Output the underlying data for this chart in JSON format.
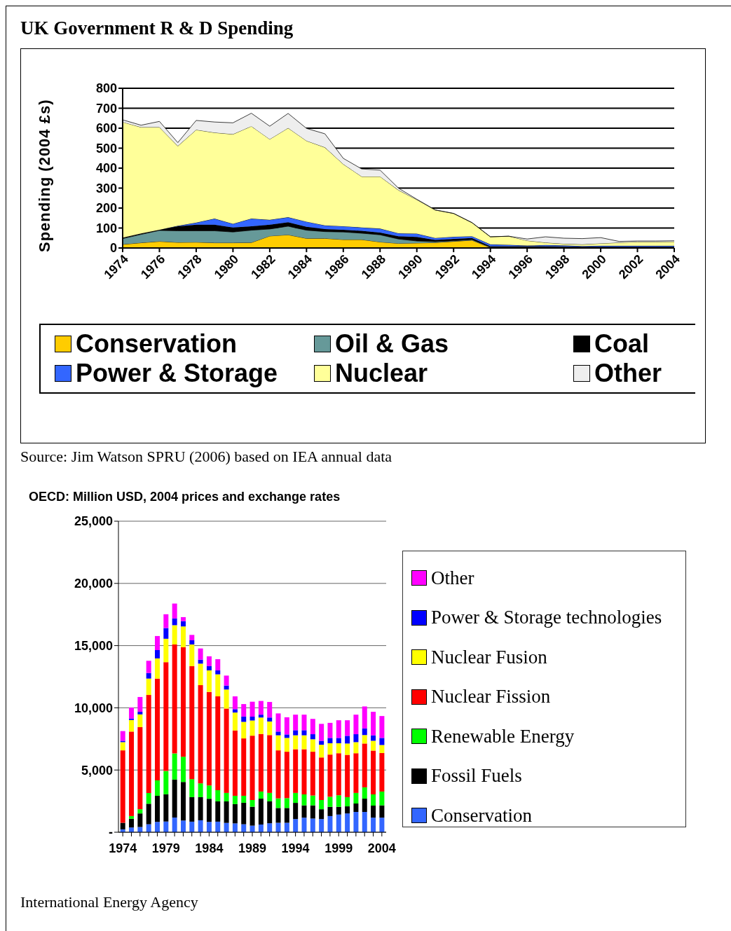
{
  "chart_data": [
    {
      "type": "area",
      "title": "UK Government R & D Spending",
      "ylabel": "Spending (2004 £s)",
      "stacked": true,
      "grid": "y",
      "legend": "bottom",
      "x": [
        1974,
        1975,
        1976,
        1977,
        1978,
        1979,
        1980,
        1981,
        1982,
        1983,
        1984,
        1985,
        1986,
        1987,
        1988,
        1989,
        1990,
        1991,
        1992,
        1993,
        1994,
        1995,
        1996,
        1997,
        1998,
        1999,
        2000,
        2001,
        2002,
        2003,
        2004
      ],
      "xlim": [
        1974,
        2004
      ],
      "xticks": [
        1974,
        1976,
        1978,
        1980,
        1982,
        1984,
        1986,
        1988,
        1990,
        1992,
        1994,
        1996,
        1998,
        2000,
        2002,
        2004
      ],
      "ylim": [
        0,
        800
      ],
      "yticks": [
        0,
        100,
        200,
        300,
        400,
        500,
        600,
        700,
        800
      ],
      "series": [
        {
          "name": "Conservation",
          "color": "#ffcc00",
          "values": [
            18,
            26,
            33,
            28,
            29,
            26,
            26,
            27,
            60,
            66,
            48,
            48,
            42,
            42,
            30,
            23,
            25,
            27,
            33,
            39,
            2,
            2,
            2,
            2,
            2,
            2,
            2,
            2,
            2,
            2,
            2
          ]
        },
        {
          "name": "Oil & Gas",
          "color": "#669999",
          "values": [
            29,
            42,
            55,
            58,
            57,
            60,
            54,
            62,
            35,
            43,
            41,
            34,
            38,
            32,
            36,
            22,
            10,
            5,
            3,
            3,
            2,
            2,
            2,
            2,
            2,
            1,
            1,
            1,
            1,
            1,
            1
          ]
        },
        {
          "name": "Coal",
          "color": "#000000",
          "values": [
            5,
            5,
            3,
            23,
            31,
            31,
            23,
            20,
            22,
            20,
            17,
            13,
            11,
            12,
            11,
            14,
            20,
            8,
            10,
            8,
            5,
            5,
            5,
            5,
            4,
            3,
            3,
            3,
            3,
            3,
            3
          ]
        },
        {
          "name": "Power & Storage",
          "color": "#3366ff",
          "values": [
            0,
            0,
            0,
            2,
            10,
            30,
            18,
            38,
            24,
            25,
            26,
            18,
            18,
            17,
            20,
            15,
            17,
            10,
            10,
            9,
            9,
            7,
            3,
            6,
            5,
            4,
            5,
            5,
            5,
            5,
            5
          ]
        },
        {
          "name": "Nuclear",
          "color": "#ffff99",
          "values": [
            579,
            532,
            514,
            400,
            465,
            431,
            449,
            463,
            404,
            447,
            405,
            391,
            311,
            255,
            261,
            216,
            170,
            140,
            117,
            68,
            38,
            43,
            25,
            12,
            8,
            8,
            12,
            16,
            20,
            20,
            21
          ]
        },
        {
          "name": "Other",
          "color": "#eeeeee",
          "values": [
            11,
            10,
            29,
            17,
            47,
            53,
            57,
            65,
            65,
            73,
            62,
            68,
            29,
            38,
            32,
            10,
            2,
            1,
            0,
            0,
            0,
            0,
            8,
            29,
            28,
            29,
            29,
            6,
            4,
            4,
            4
          ]
        }
      ],
      "annotations": [
        "Source: Jim Watson SPRU (2006) based on IEA annual data"
      ]
    },
    {
      "type": "bar",
      "title": "OECD: Million USD, 2004 prices and exchange rates",
      "stacked": true,
      "grid": "y",
      "legend": "right",
      "categories": [
        "1974",
        null,
        null,
        null,
        null,
        "1979",
        null,
        null,
        null,
        null,
        "1984",
        null,
        null,
        null,
        null,
        "1989",
        null,
        null,
        null,
        null,
        "1994",
        null,
        null,
        null,
        null,
        "1999",
        null,
        null,
        null,
        null,
        "2004"
      ],
      "ylim": [
        0,
        25000
      ],
      "yticks": [
        {
          "value": 0,
          "label": "-"
        },
        {
          "value": 5000,
          "label": "5,000"
        },
        {
          "value": 10000,
          "label": "10,000"
        },
        {
          "value": 15000,
          "label": "15,000"
        },
        {
          "value": 20000,
          "label": "20,000"
        },
        {
          "value": 25000,
          "label": "25,000"
        }
      ],
      "series": [
        {
          "name": "Conservation",
          "color": "#3366ff",
          "values": [
            230,
            380,
            420,
            640,
            830,
            860,
            1180,
            940,
            850,
            960,
            830,
            850,
            750,
            710,
            640,
            530,
            620,
            720,
            760,
            760,
            1060,
            1170,
            1100,
            1060,
            1300,
            1420,
            1510,
            1630,
            1630,
            1170,
            1170
          ]
        },
        {
          "name": "Fossil Fuels",
          "color": "#000000",
          "values": [
            530,
            700,
            1090,
            1650,
            2100,
            2190,
            3050,
            3100,
            1970,
            1860,
            1860,
            1630,
            1730,
            1550,
            1730,
            1520,
            2080,
            1760,
            1190,
            1190,
            1300,
            990,
            1060,
            790,
            740,
            620,
            570,
            680,
            1070,
            970,
            990
          ]
        },
        {
          "name": "Renewable Energy",
          "color": "#00ff00",
          "values": [
            0,
            220,
            340,
            870,
            1240,
            1870,
            2100,
            2030,
            1450,
            1110,
            1070,
            900,
            680,
            670,
            560,
            540,
            570,
            680,
            770,
            790,
            800,
            880,
            790,
            740,
            810,
            930,
            740,
            850,
            910,
            900,
            1110
          ]
        },
        {
          "name": "Nuclear Fission",
          "color": "#ff0000",
          "values": [
            5820,
            6790,
            6600,
            7870,
            8180,
            8750,
            8760,
            8800,
            9080,
            7890,
            7520,
            7540,
            6780,
            5250,
            4610,
            5170,
            4630,
            4650,
            3860,
            3730,
            3510,
            3630,
            3520,
            3420,
            3390,
            3380,
            3400,
            3190,
            3520,
            3520,
            3100
          ]
        },
        {
          "name": "Nuclear Fusion",
          "color": "#ffff00",
          "values": [
            660,
            930,
            1020,
            1320,
            1620,
            1880,
            1550,
            1670,
            1740,
            1730,
            1730,
            1770,
            1530,
            1440,
            1330,
            1220,
            1320,
            1090,
            1210,
            1110,
            1120,
            1120,
            1000,
            1020,
            910,
            800,
            910,
            890,
            680,
            790,
            640
          ]
        },
        {
          "name": "Power & Storage technologies",
          "color": "#0000ff",
          "values": [
            110,
            110,
            210,
            450,
            670,
            860,
            540,
            430,
            340,
            320,
            340,
            320,
            320,
            270,
            430,
            310,
            230,
            320,
            300,
            280,
            410,
            410,
            410,
            320,
            430,
            430,
            620,
            640,
            530,
            440,
            570
          ]
        },
        {
          "name": "Other",
          "color": "#ff00ff",
          "values": [
            780,
            890,
            1190,
            980,
            1130,
            1110,
            1200,
            320,
            430,
            900,
            790,
            900,
            800,
            1030,
            1000,
            1200,
            1100,
            1250,
            1460,
            1380,
            1250,
            1250,
            1230,
            1360,
            1210,
            1420,
            1250,
            1570,
            1770,
            1890,
            1760
          ]
        }
      ],
      "annotations": [
        "International Energy Agency"
      ]
    }
  ]
}
